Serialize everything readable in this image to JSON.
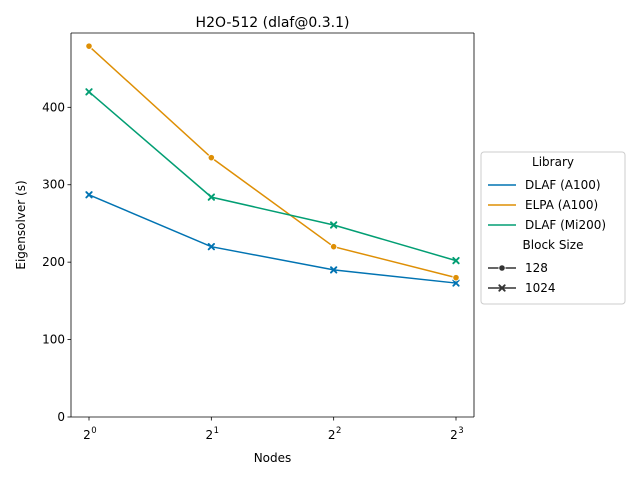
{
  "chart_data": {
    "type": "line",
    "title": "H2O-512 (dlaf@0.3.1)",
    "xlabel": "Nodes",
    "ylabel": "Eigensolver (s)",
    "x_scale": "log2",
    "x": [
      1,
      2,
      4,
      8
    ],
    "x_tick_base": "2",
    "x_tick_exponents": [
      "0",
      "1",
      "2",
      "3"
    ],
    "ylim": [
      0,
      496
    ],
    "y_ticks": [
      0,
      100,
      200,
      300,
      400
    ],
    "y_tick_labels": [
      "0",
      "100",
      "200",
      "300",
      "400"
    ],
    "grid": false,
    "legend": {
      "placement": "right-outside",
      "hue_title": "Library",
      "style_title": "Block Size",
      "style_items": [
        {
          "label": "128",
          "marker": "circle"
        },
        {
          "label": "1024",
          "marker": "x"
        }
      ]
    },
    "series": [
      {
        "name": "DLAF (A100)",
        "color": "#0173b2",
        "marker": "x",
        "values": [
          287,
          220,
          190,
          173
        ]
      },
      {
        "name": "ELPA (A100)",
        "color": "#de8f05",
        "marker": "circle",
        "values": [
          479,
          335,
          220,
          180
        ]
      },
      {
        "name": "DLAF (Mi200)",
        "color": "#029e73",
        "marker": "x",
        "values": [
          420,
          284,
          248,
          202
        ]
      }
    ]
  }
}
